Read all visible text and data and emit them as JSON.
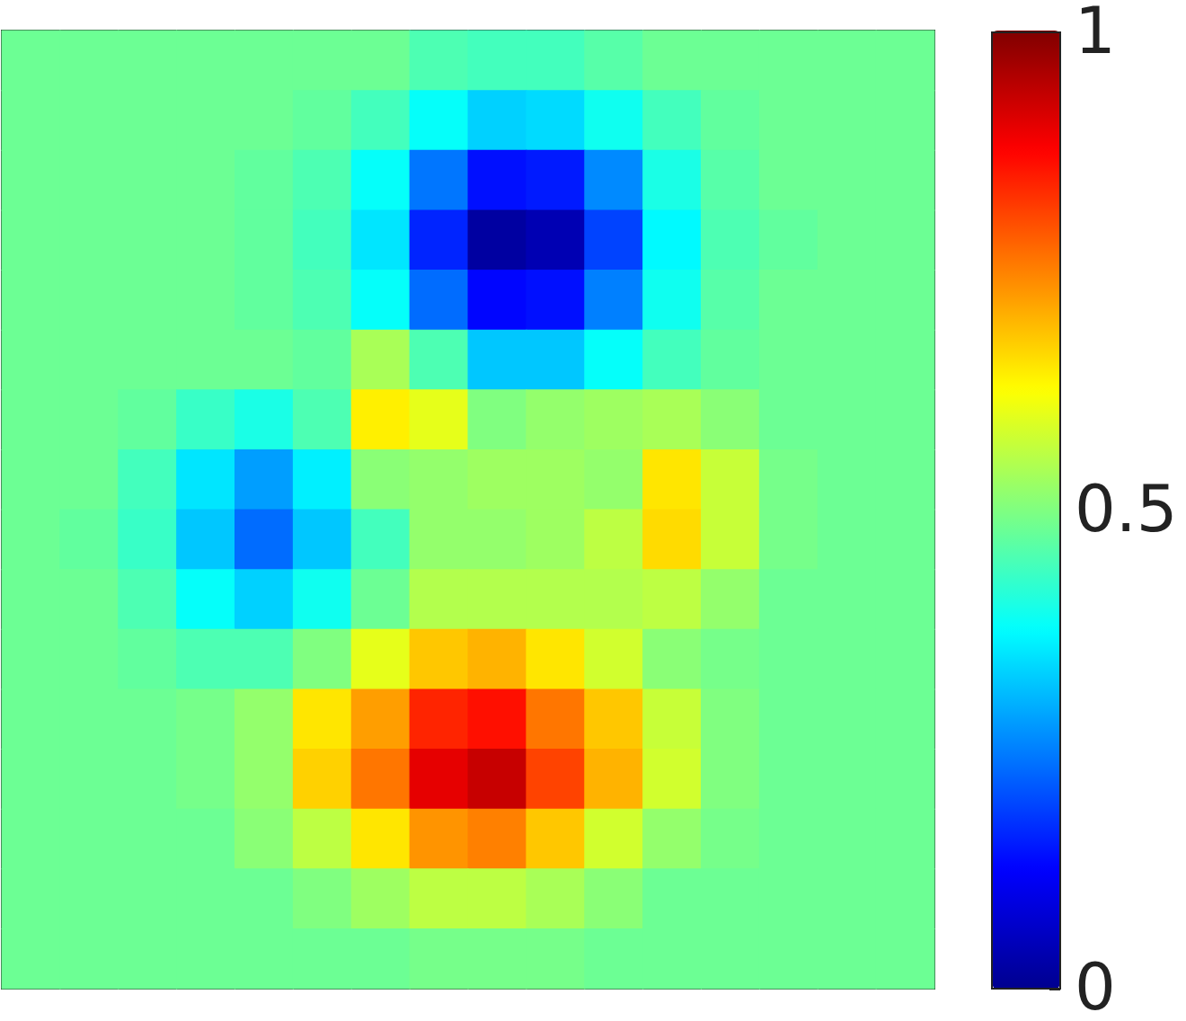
{
  "chart_data": {
    "type": "heatmap",
    "categories": [
      null,
      null,
      null,
      null,
      null,
      null,
      null,
      null,
      null,
      null,
      null,
      null,
      null,
      null,
      null,
      null
    ],
    "y_categories": [
      null,
      null,
      null,
      null,
      null,
      null,
      null,
      null,
      null,
      null,
      null,
      null,
      null,
      null,
      null,
      null
    ],
    "cells": [
      [
        0.48,
        0.48,
        0.48,
        0.48,
        0.48,
        0.48,
        0.48,
        0.45,
        0.44,
        0.44,
        0.46,
        0.48,
        0.48,
        0.48,
        0.48,
        0.48
      ],
      [
        0.48,
        0.48,
        0.48,
        0.48,
        0.48,
        0.47,
        0.44,
        0.38,
        0.33,
        0.34,
        0.39,
        0.44,
        0.47,
        0.48,
        0.48,
        0.48
      ],
      [
        0.48,
        0.48,
        0.48,
        0.48,
        0.47,
        0.45,
        0.38,
        0.24,
        0.14,
        0.15,
        0.26,
        0.4,
        0.46,
        0.48,
        0.48,
        0.48
      ],
      [
        0.48,
        0.48,
        0.48,
        0.48,
        0.47,
        0.44,
        0.35,
        0.16,
        0.02,
        0.04,
        0.19,
        0.37,
        0.45,
        0.47,
        0.48,
        0.48
      ],
      [
        0.48,
        0.48,
        0.48,
        0.48,
        0.47,
        0.45,
        0.38,
        0.23,
        0.13,
        0.14,
        0.25,
        0.39,
        0.46,
        0.48,
        0.48,
        0.48
      ],
      [
        0.48,
        0.48,
        0.48,
        0.48,
        0.48,
        0.47,
        0.54,
        0.45,
        0.32,
        0.32,
        0.38,
        0.44,
        0.47,
        0.48,
        0.48,
        0.48
      ],
      [
        0.48,
        0.48,
        0.47,
        0.43,
        0.4,
        0.45,
        0.64,
        0.6,
        0.5,
        0.52,
        0.53,
        0.54,
        0.51,
        0.48,
        0.48,
        0.48
      ],
      [
        0.48,
        0.48,
        0.44,
        0.35,
        0.28,
        0.36,
        0.51,
        0.52,
        0.53,
        0.53,
        0.52,
        0.65,
        0.57,
        0.49,
        0.48,
        0.48
      ],
      [
        0.48,
        0.47,
        0.43,
        0.32,
        0.23,
        0.32,
        0.44,
        0.52,
        0.52,
        0.53,
        0.56,
        0.66,
        0.57,
        0.49,
        0.48,
        0.48
      ],
      [
        0.48,
        0.48,
        0.45,
        0.38,
        0.33,
        0.39,
        0.48,
        0.55,
        0.55,
        0.55,
        0.55,
        0.56,
        0.52,
        0.48,
        0.48,
        0.48
      ],
      [
        0.48,
        0.48,
        0.47,
        0.45,
        0.45,
        0.5,
        0.6,
        0.68,
        0.7,
        0.65,
        0.58,
        0.51,
        0.49,
        0.48,
        0.48,
        0.48
      ],
      [
        0.48,
        0.48,
        0.48,
        0.49,
        0.52,
        0.65,
        0.72,
        0.84,
        0.86,
        0.76,
        0.68,
        0.57,
        0.5,
        0.48,
        0.48,
        0.48
      ],
      [
        0.48,
        0.48,
        0.48,
        0.49,
        0.52,
        0.67,
        0.76,
        0.9,
        0.93,
        0.81,
        0.7,
        0.58,
        0.5,
        0.48,
        0.48,
        0.48
      ],
      [
        0.48,
        0.48,
        0.48,
        0.48,
        0.51,
        0.56,
        0.65,
        0.73,
        0.75,
        0.68,
        0.58,
        0.52,
        0.49,
        0.48,
        0.48,
        0.48
      ],
      [
        0.48,
        0.48,
        0.48,
        0.48,
        0.48,
        0.5,
        0.53,
        0.56,
        0.56,
        0.54,
        0.51,
        0.48,
        0.48,
        0.48,
        0.48,
        0.48
      ],
      [
        0.48,
        0.48,
        0.48,
        0.48,
        0.48,
        0.48,
        0.48,
        0.49,
        0.49,
        0.49,
        0.48,
        0.48,
        0.48,
        0.48,
        0.48,
        0.48
      ]
    ],
    "clim": [
      0,
      1
    ],
    "cticks": [
      0,
      0.5,
      1
    ],
    "tick_labels": false
  }
}
